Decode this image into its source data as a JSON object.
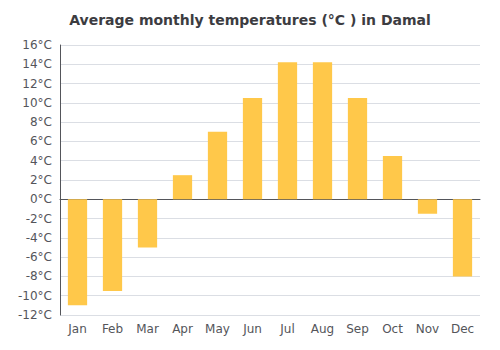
{
  "chart_data": {
    "type": "bar",
    "title": "Average monthly temperatures (°C ) in Damal",
    "categories": [
      "Jan",
      "Feb",
      "Mar",
      "Apr",
      "May",
      "Jun",
      "Jul",
      "Aug",
      "Sep",
      "Oct",
      "Nov",
      "Dec"
    ],
    "values": [
      -11,
      -9.5,
      -5,
      2.5,
      7,
      10.5,
      14.2,
      14.2,
      10.5,
      4.5,
      -1.5,
      -8
    ],
    "color": "#FFC84A",
    "ylim": [
      -12,
      16
    ],
    "yticks": [
      {
        "value": -12,
        "label": "-12°C"
      },
      {
        "value": -10,
        "label": "-10°C"
      },
      {
        "value": -8,
        "label": "-8°C"
      },
      {
        "value": -6,
        "label": "-6°C"
      },
      {
        "value": -4,
        "label": "-4°C"
      },
      {
        "value": -2,
        "label": "-2°C"
      },
      {
        "value": 0,
        "label": "0°C"
      },
      {
        "value": 2,
        "label": "2°C"
      },
      {
        "value": 4,
        "label": "4°C"
      },
      {
        "value": 6,
        "label": "6°C"
      },
      {
        "value": 8,
        "label": "8°C"
      },
      {
        "value": 10,
        "label": "10°C"
      },
      {
        "value": 12,
        "label": "12°C"
      },
      {
        "value": 14,
        "label": "14°C"
      },
      {
        "value": 16,
        "label": "16°C"
      }
    ],
    "grid": true
  }
}
